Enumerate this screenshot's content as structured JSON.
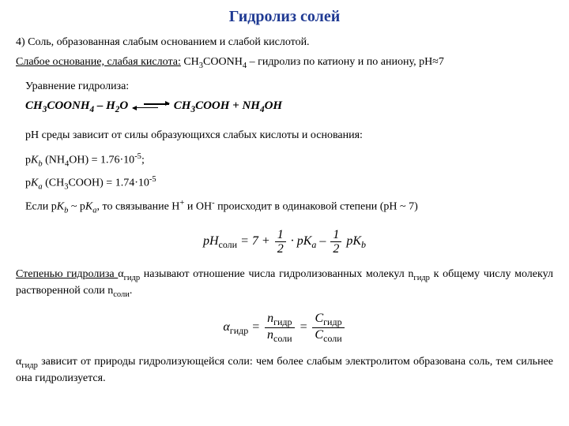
{
  "title": "Гидролиз солей",
  "line1_prefix": "4) Соль, образованная слабым основанием и слабой кислотой.",
  "line2_u": "Слабое основание, слабая кислота:",
  "line2_body": " CH",
  "line2_3": "3",
  "line2_mid": "COONH",
  "line2_4": "4",
  "line2_rest": " – гидролиз по катиону и по аниону, pH≈7",
  "eq_label": "Уравнение гидролиза:",
  "r_l1": "CH",
  "r_l2": "COONH",
  "r_l3": " – H",
  "r_l4": "O",
  "r_r1": "CH",
  "r_r2": "COOH + NH",
  "r_r3": "OH",
  "sub3": "3",
  "sub4": "4",
  "sub2": "2",
  "ph_line": "pH среды зависит от силы образующихся слабых кислоты и основания:",
  "pkb_pre": "p",
  "pkb_K": "K",
  "pkb_b": "b",
  "pkb_rest": " (NH",
  "pkb_4": "4",
  "pkb_oh": "OH) = 1.76·10",
  "pkb_exp": "-5",
  "pkb_semi": ";",
  "pka_pre": "p",
  "pka_K": "K",
  "pka_a": "a",
  "pka_rest": " (CH",
  "pka_3": "3",
  "pka_cooh": "COOH) = 1.74·10",
  "pka_exp": "-5",
  "cond_1": "Если p",
  "cond_2": " ~ p",
  "cond_3": ", то связывание H",
  "cond_plus": "+",
  "cond_4": " и OH",
  "cond_minus": "-",
  "cond_5": " происходит в одинаковой степени (pH ~ 7)",
  "ph_salt": "pH",
  "ph_salt_sub": "соли",
  "ph_eq_7": " = 7 + ",
  "half_num": "1",
  "half_den": "2",
  "ph_dot_pka": " · p",
  "ph_minus": " – ",
  "ph_pkb": " p",
  "deg_u": "Степенью гидролиза ",
  "alpha": "α",
  "gidr": "гидр",
  "deg_rest1": " называют отношение числа гидролизованных молекул n",
  "deg_rest2": " к общему числу молекул растворенной соли n",
  "soli": "соли",
  "dot": ".",
  "a_eq": " = ",
  "nn": "n",
  "CC": "C",
  "final1": " зависит от природы гидролизующейся соли: чем более слабым электролитом образована соль, тем сильнее она гидролизуется."
}
